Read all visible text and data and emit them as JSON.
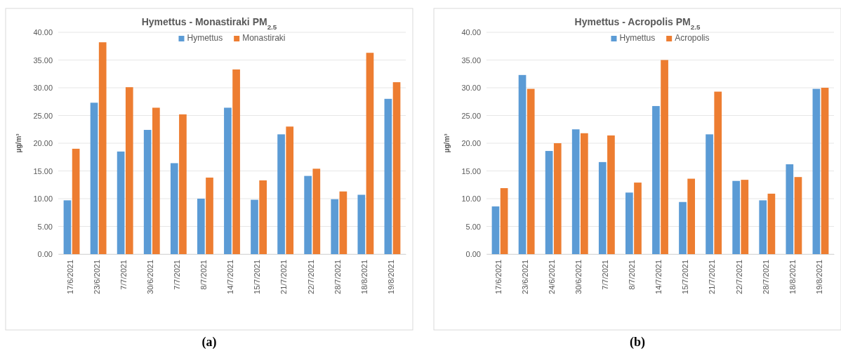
{
  "chart_data": [
    {
      "type": "bar",
      "title": "Hymettus - Monastiraki PM$_{2.5}$",
      "ylabel": "μg/m³",
      "annotations": [
        "(a)"
      ],
      "categories": [
        "17/6/2021",
        "23/6/2021",
        "7/7/2021",
        "30/6/2021",
        "7/7/2021",
        "8/7/2021",
        "14/7/2021",
        "15/7/2021",
        "21/7/2021",
        "22/7/2021",
        "28/7/2021",
        "18/8/2021",
        "19/8/2021"
      ],
      "series": [
        {
          "name": "Hymettus",
          "color": "#5b9bd5",
          "values": [
            9.7,
            27.3,
            18.5,
            22.4,
            16.4,
            10.0,
            26.4,
            9.8,
            21.6,
            14.1,
            9.9,
            10.7,
            28.0
          ]
        },
        {
          "name": "Monastiraki",
          "color": "#ed7d31",
          "values": [
            19.0,
            38.2,
            30.1,
            26.4,
            25.2,
            13.8,
            33.3,
            13.3,
            23.0,
            15.4,
            11.3,
            36.3,
            31.0
          ]
        }
      ],
      "ylim": [
        0,
        40
      ],
      "yticks": [
        {
          "value": 0,
          "label": "0.00"
        },
        {
          "value": 5,
          "label": "5.00"
        },
        {
          "value": 10,
          "label": "10.00"
        },
        {
          "value": 15,
          "label": "15.00"
        },
        {
          "value": 20,
          "label": "20.00"
        },
        {
          "value": 25,
          "label": "25.00"
        },
        {
          "value": 30,
          "label": "30.00"
        },
        {
          "value": 35,
          "label": "35.00"
        },
        {
          "value": 40,
          "label": "40.00"
        }
      ],
      "grid": "y",
      "legend": "top"
    },
    {
      "type": "bar",
      "title": "Hymettus - Acropolis PM$_{2.5}$",
      "ylabel": "μg/m³",
      "annotations": [
        "(b)"
      ],
      "categories": [
        "17/6/2021",
        "23/6/2021",
        "24/6/2021",
        "30/6/2021",
        "7/7/2021",
        "8/7/2021",
        "14/7/2021",
        "15/7/2021",
        "21/7/2021",
        "22/7/2021",
        "28/7/2021",
        "18/8/2021",
        "19/8/2021"
      ],
      "series": [
        {
          "name": "Hymettus",
          "color": "#5b9bd5",
          "values": [
            8.6,
            32.3,
            18.6,
            22.5,
            16.6,
            11.1,
            26.7,
            9.4,
            21.6,
            13.2,
            9.7,
            16.2,
            29.8
          ]
        },
        {
          "name": "Acropolis",
          "color": "#ed7d31",
          "values": [
            11.9,
            29.8,
            20.0,
            21.8,
            21.4,
            12.9,
            35.0,
            13.6,
            29.3,
            13.4,
            10.9,
            13.9,
            30.0
          ]
        }
      ],
      "ylim": [
        0,
        40
      ],
      "yticks": [
        {
          "value": 0,
          "label": "0.00"
        },
        {
          "value": 5,
          "label": "5.00"
        },
        {
          "value": 10,
          "label": "10.00"
        },
        {
          "value": 15,
          "label": "15.00"
        },
        {
          "value": 20,
          "label": "20.00"
        },
        {
          "value": 25,
          "label": "25.00"
        },
        {
          "value": 30,
          "label": "30.00"
        },
        {
          "value": 35,
          "label": "35.00"
        },
        {
          "value": 40,
          "label": "40.00"
        }
      ],
      "grid": "y",
      "legend": "top"
    }
  ]
}
